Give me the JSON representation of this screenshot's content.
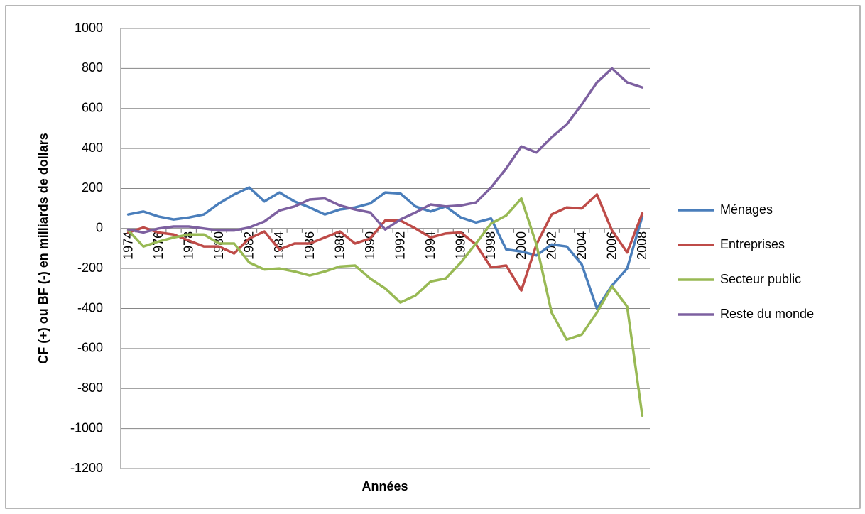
{
  "chart_data": {
    "type": "line",
    "y_label": "CF (+) ou BF (-) en milliards de dollars",
    "x_label": "Années",
    "categories": [
      "1974",
      null,
      "1976",
      null,
      "1978",
      null,
      "1980",
      null,
      "1982",
      null,
      "1984",
      null,
      "1986",
      null,
      "1988",
      null,
      "1990",
      null,
      "1992",
      null,
      "1994",
      null,
      "1996",
      null,
      "1998",
      null,
      "2000",
      null,
      "2002",
      null,
      "2004",
      null,
      "2006",
      null,
      "2008"
    ],
    "series": [
      {
        "name": "Ménages",
        "color": "#4a7ebb",
        "values": [
          70,
          85,
          60,
          45,
          55,
          70,
          125,
          170,
          205,
          135,
          180,
          135,
          105,
          70,
          95,
          105,
          125,
          180,
          175,
          110,
          85,
          110,
          55,
          30,
          50,
          -105,
          -115,
          -135,
          -80,
          -90,
          -180,
          -400,
          -285,
          -200,
          60
        ]
      },
      {
        "name": "Entreprises",
        "color": "#be4b48",
        "values": [
          -20,
          5,
          -20,
          -30,
          -60,
          -90,
          -90,
          -125,
          -50,
          -15,
          -105,
          -75,
          -75,
          -45,
          -15,
          -75,
          -50,
          40,
          40,
          0,
          -45,
          -25,
          -20,
          -80,
          -195,
          -185,
          -310,
          -80,
          70,
          105,
          100,
          170,
          -10,
          -120,
          75
        ]
      },
      {
        "name": "Secteur public",
        "color": "#98b954",
        "values": [
          -10,
          -90,
          -65,
          -45,
          -30,
          -30,
          -75,
          -75,
          -170,
          -205,
          -200,
          -215,
          -235,
          -215,
          -190,
          -185,
          -250,
          -300,
          -370,
          -335,
          -265,
          -250,
          -170,
          -75,
          25,
          65,
          150,
          -80,
          -420,
          -555,
          -530,
          -420,
          -290,
          -390,
          -935
        ]
      },
      {
        "name": "Reste du monde",
        "color": "#7d60a0",
        "values": [
          -5,
          -20,
          0,
          10,
          10,
          0,
          -10,
          -10,
          5,
          35,
          90,
          110,
          145,
          150,
          115,
          95,
          80,
          -5,
          45,
          80,
          120,
          110,
          115,
          130,
          205,
          300,
          410,
          380,
          455,
          520,
          620,
          730,
          800,
          730,
          705
        ]
      }
    ],
    "ylim": [
      -1200,
      1000
    ],
    "yticks": [
      -1200,
      -1000,
      -800,
      -600,
      -400,
      -200,
      0,
      200,
      400,
      600,
      800,
      1000
    ],
    "grid": true,
    "legend": "right"
  }
}
